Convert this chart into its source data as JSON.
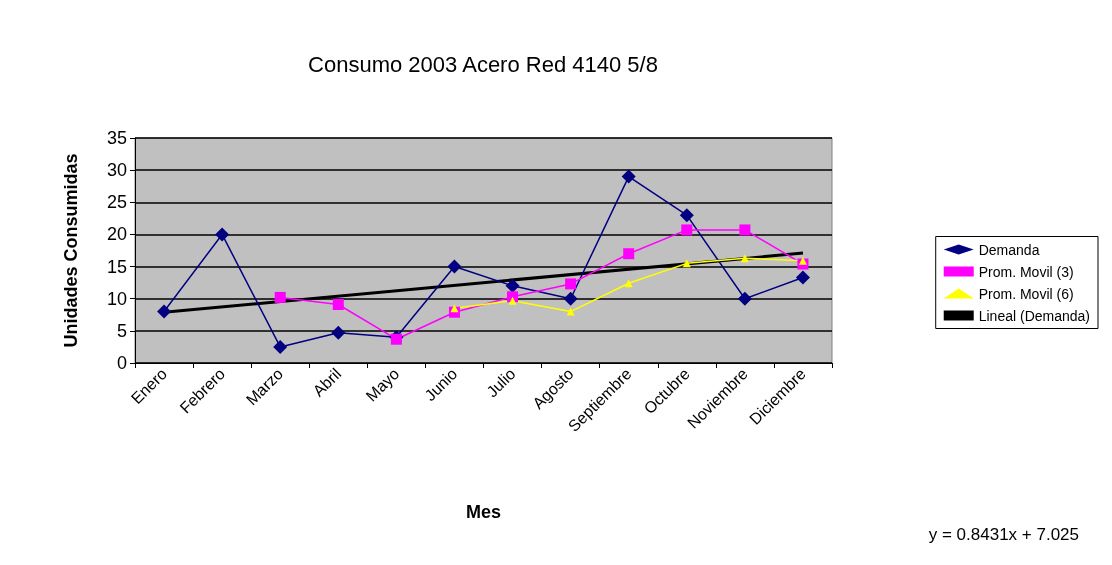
{
  "chart_data": {
    "type": "line",
    "title": "Consumo 2003 Acero Red 4140 5/8",
    "xlabel": "Mes",
    "ylabel": "Unidades Consumidas",
    "categories": [
      "Enero",
      "Febrero",
      "Marzo",
      "Abril",
      "Mayo",
      "Junio",
      "Julio",
      "Agosto",
      "Septiembre",
      "Octubre",
      "Noviembre",
      "Diciembre"
    ],
    "series": [
      {
        "name": "Demanda",
        "color": "#000080",
        "marker": "diamond",
        "values": [
          8,
          20,
          2.5,
          4.7,
          4,
          15,
          12,
          10,
          29,
          23,
          10,
          13.3
        ]
      },
      {
        "name": "Prom. Movil (3)",
        "color": "#ff00ff",
        "marker": "square",
        "values": [
          null,
          null,
          10.2,
          9.1,
          3.7,
          7.9,
          10.3,
          12.3,
          17,
          20.7,
          20.7,
          15.4
        ]
      },
      {
        "name": "Prom. Movil (6)",
        "color": "#ffff00",
        "marker": "triangle",
        "values": [
          null,
          null,
          null,
          null,
          null,
          8.5,
          9.7,
          8,
          12.4,
          15.5,
          16.3,
          15.9
        ]
      },
      {
        "name": "Lineal (Demanda)",
        "color": "#000000",
        "marker": "none",
        "x": [
          "Enero",
          "Diciembre"
        ],
        "values": [
          7.9,
          17.1
        ]
      }
    ],
    "ylim": [
      0,
      35
    ],
    "yticks": [
      0,
      5,
      10,
      15,
      20,
      25,
      30,
      35
    ],
    "grid": "y",
    "legend": "right",
    "annotations": [
      "y = 0.8431x + 7.025"
    ]
  }
}
